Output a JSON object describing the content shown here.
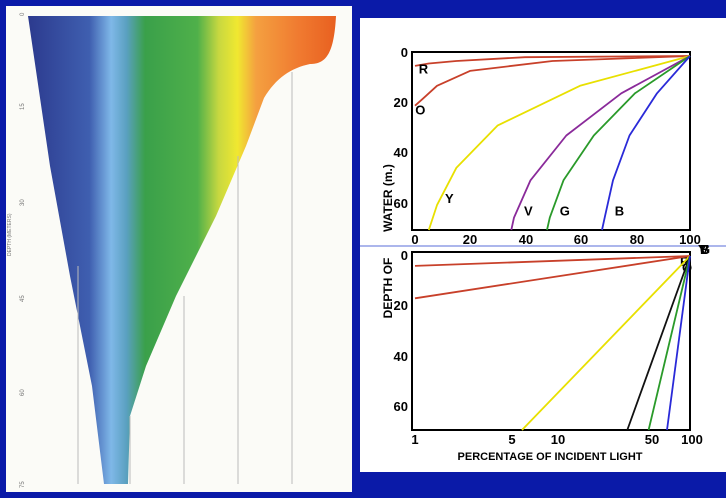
{
  "colors": {
    "background": "#0a1aa8",
    "red": "#c8402a",
    "orange": "#e8701a",
    "yellow": "#e8e000",
    "green": "#2a9a2a",
    "blue": "#2a2ad8",
    "violet": "#8a2a9a"
  },
  "left_chart": {
    "axis_label": "DEPTH (METERS)",
    "ticks": [
      "0",
      "15",
      "30",
      "45",
      "60",
      "75"
    ]
  },
  "top_chart": {
    "y_ticks": [
      "0",
      "20",
      "40",
      "60"
    ],
    "x_ticks": [
      "0",
      "20",
      "40",
      "60",
      "80",
      "100"
    ]
  },
  "bottom_chart": {
    "y_ticks": [
      "0",
      "20",
      "40",
      "60"
    ],
    "x_ticks": [
      "1",
      "5",
      "10",
      "50",
      "100"
    ]
  },
  "shared_labels": {
    "ylabel_upper": "WATER (m.)",
    "ylabel_lower": "DEPTH OF",
    "xlabel": "PERCENTAGE OF INCIDENT LIGHT"
  },
  "chart_data": [
    {
      "type": "area",
      "xlabel": "",
      "ylabel": "DEPTH (METERS)",
      "ylim": [
        0,
        75
      ],
      "series": [
        {
          "name": "",
          "color": "#2a3f9a"
        },
        {
          "name": "",
          "color": "#6fa8e0"
        },
        {
          "name": "",
          "color": "#3aa04a"
        },
        {
          "name": "",
          "color": "#e8e000"
        },
        {
          "name": "",
          "color": "#f07a30"
        }
      ]
    },
    {
      "type": "line",
      "xlabel": "",
      "ylabel": "WATER (m.)",
      "xlim": [
        0,
        100
      ],
      "ylim": [
        0,
        70
      ],
      "series": [
        {
          "name": "R",
          "color": "#c8402a",
          "points": [
            [
              100,
              0
            ],
            [
              40,
              0.5
            ],
            [
              15,
              2
            ],
            [
              5,
              3
            ],
            [
              0,
              4
            ]
          ]
        },
        {
          "name": "O",
          "color": "#c8402a",
          "points": [
            [
              100,
              0
            ],
            [
              50,
              2
            ],
            [
              20,
              6
            ],
            [
              8,
              12
            ],
            [
              3,
              17
            ],
            [
              0,
              20
            ]
          ]
        },
        {
          "name": "Y",
          "color": "#e8e000",
          "points": [
            [
              100,
              0
            ],
            [
              60,
              12
            ],
            [
              30,
              28
            ],
            [
              15,
              45
            ],
            [
              8,
              60
            ],
            [
              5,
              70
            ]
          ]
        },
        {
          "name": "V",
          "color": "#8a2a9a",
          "points": [
            [
              100,
              0
            ],
            [
              75,
              15
            ],
            [
              55,
              32
            ],
            [
              42,
              50
            ],
            [
              36,
              65
            ],
            [
              35,
              70
            ]
          ]
        },
        {
          "name": "G",
          "color": "#2a9a2a",
          "points": [
            [
              100,
              0
            ],
            [
              80,
              15
            ],
            [
              65,
              32
            ],
            [
              54,
              50
            ],
            [
              49,
              65
            ],
            [
              48,
              70
            ]
          ]
        },
        {
          "name": "B",
          "color": "#2a2ad8",
          "points": [
            [
              100,
              0
            ],
            [
              88,
              15
            ],
            [
              78,
              32
            ],
            [
              72,
              50
            ],
            [
              69,
              65
            ],
            [
              68,
              70
            ]
          ]
        }
      ]
    },
    {
      "type": "line",
      "xlabel": "PERCENTAGE OF INCIDENT LIGHT",
      "ylabel": "DEPTH OF",
      "xscale": "log",
      "xlim": [
        1,
        100
      ],
      "ylim": [
        0,
        70
      ],
      "series": [
        {
          "name": "R",
          "color": "#c8402a",
          "points": [
            [
              100,
              0
            ],
            [
              1,
              4
            ]
          ]
        },
        {
          "name": "O",
          "color": "#c8402a",
          "points": [
            [
              100,
              0
            ],
            [
              1,
              17
            ]
          ]
        },
        {
          "name": "Y",
          "color": "#e8e000",
          "points": [
            [
              100,
              0
            ],
            [
              6,
              70
            ]
          ]
        },
        {
          "name": "V",
          "color": "#111111",
          "points": [
            [
              100,
              0
            ],
            [
              35,
              70
            ]
          ]
        },
        {
          "name": "G",
          "color": "#2a9a2a",
          "points": [
            [
              100,
              0
            ],
            [
              50,
              70
            ]
          ]
        },
        {
          "name": "B",
          "color": "#2a2ad8",
          "points": [
            [
              100,
              0
            ],
            [
              68,
              70
            ]
          ]
        }
      ]
    }
  ]
}
